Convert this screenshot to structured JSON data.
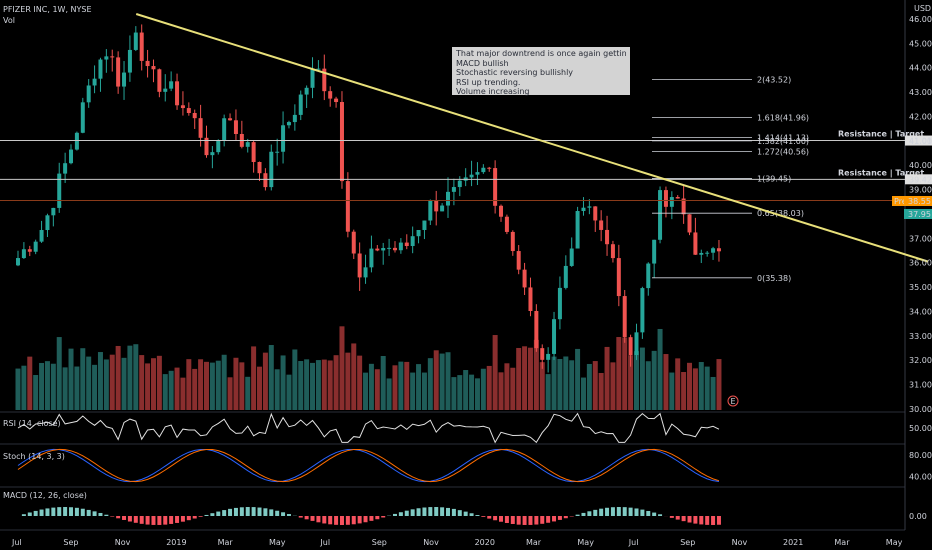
{
  "header": {
    "symbol_line": "PFIZER INC, 1W, NYSE",
    "vol_label": "Vol",
    "currency": "USD"
  },
  "note": {
    "lines": [
      "That major downtrend is once again getting hit today.",
      "MACD bullish",
      "Stochastic reversing bullishly",
      "RSI up trending.",
      "Volume increasing"
    ]
  },
  "indicators": {
    "rsi_label": "RSI (14, close)",
    "stoch_label": "Stoch (14, 3, 3)",
    "macd_label": "MACD (12, 26, close)"
  },
  "price_badges": {
    "pre_label": "Pre",
    "pre_value": "38.55",
    "last_value": "37.95"
  },
  "earnings_marker": "E",
  "chart_data": {
    "type": "candlestick",
    "price_axis": {
      "ylim": [
        30.0,
        46.2
      ],
      "ticks": [
        "46.00",
        "45.00",
        "44.00",
        "43.00",
        "42.00",
        "41.00",
        "40.00",
        "39.00",
        "38.00",
        "37.00",
        "36.00",
        "35.00",
        "34.00",
        "33.00",
        "32.00",
        "31.00",
        "30.00"
      ],
      "tick_values": [
        46,
        45,
        44,
        43,
        42,
        41,
        40,
        39,
        38,
        37,
        36,
        35,
        34,
        33,
        32,
        31,
        30
      ]
    },
    "time_axis": {
      "labels": [
        "Jul",
        "Sep",
        "Nov",
        "2019",
        "Mar",
        "May",
        "Jul",
        "Sep",
        "Nov",
        "2020",
        "Mar",
        "May",
        "Jul",
        "Sep",
        "Nov",
        "2021",
        "Mar",
        "May"
      ],
      "label_months": [
        0,
        2,
        4,
        6,
        8,
        10,
        12,
        14,
        16,
        18,
        20,
        22,
        24,
        26,
        28,
        30,
        32,
        34
      ]
    },
    "ohlc_keypoints": [
      {
        "month": 0.0,
        "price": 36.2
      },
      {
        "month": 1.0,
        "price": 37.5
      },
      {
        "month": 2.0,
        "price": 40.5
      },
      {
        "month": 3.0,
        "price": 44.0
      },
      {
        "month": 3.5,
        "price": 44.8
      },
      {
        "month": 4.0,
        "price": 43.2
      },
      {
        "month": 4.6,
        "price": 45.8
      },
      {
        "month": 5.0,
        "price": 43.7
      },
      {
        "month": 6.0,
        "price": 43.0
      },
      {
        "month": 7.0,
        "price": 41.6
      },
      {
        "month": 7.6,
        "price": 40.0
      },
      {
        "month": 8.0,
        "price": 42.2
      },
      {
        "month": 9.0,
        "price": 40.6
      },
      {
        "month": 9.6,
        "price": 39.4
      },
      {
        "month": 10.0,
        "price": 40.6
      },
      {
        "month": 11.0,
        "price": 42.8
      },
      {
        "month": 11.6,
        "price": 44.0
      },
      {
        "month": 12.0,
        "price": 43.2
      },
      {
        "month": 12.4,
        "price": 42.6
      },
      {
        "month": 12.7,
        "price": 38.4
      },
      {
        "month": 13.3,
        "price": 35.2
      },
      {
        "month": 14.0,
        "price": 36.7
      },
      {
        "month": 15.0,
        "price": 36.5
      },
      {
        "month": 16.0,
        "price": 38.3
      },
      {
        "month": 17.0,
        "price": 38.8
      },
      {
        "month": 17.8,
        "price": 39.4
      },
      {
        "month": 18.3,
        "price": 40.0
      },
      {
        "month": 18.6,
        "price": 38.6
      },
      {
        "month": 19.3,
        "price": 36.6
      },
      {
        "month": 19.9,
        "price": 34.0
      },
      {
        "month": 20.4,
        "price": 31.6
      },
      {
        "month": 21.0,
        "price": 34.5
      },
      {
        "month": 21.6,
        "price": 37.2
      },
      {
        "month": 22.0,
        "price": 38.3
      },
      {
        "month": 22.5,
        "price": 37.6
      },
      {
        "month": 23.0,
        "price": 37.0
      },
      {
        "month": 23.5,
        "price": 33.4
      },
      {
        "month": 23.9,
        "price": 32.5
      },
      {
        "month": 24.3,
        "price": 34.8
      },
      {
        "month": 24.8,
        "price": 37.0
      },
      {
        "month": 25.0,
        "price": 38.8
      },
      {
        "month": 25.4,
        "price": 38.3
      },
      {
        "month": 25.7,
        "price": 39.0
      },
      {
        "month": 26.0,
        "price": 38.1
      },
      {
        "month": 26.4,
        "price": 36.6
      },
      {
        "month": 26.8,
        "price": 36.1
      },
      {
        "month": 27.2,
        "price": 36.4
      },
      {
        "month": 27.5,
        "price": 37.95
      }
    ],
    "trendline": {
      "from": {
        "month": 4.6,
        "price": 46.2
      },
      "to": {
        "month": 35.4,
        "price": 36.05
      },
      "color": "#e8e07a"
    },
    "horizontal_lines": [
      {
        "price": 41.01,
        "label": "Resistance | Target",
        "axis_label": "41.01"
      },
      {
        "price": 39.42,
        "label": "Resistance | Target",
        "axis_label": "39.42"
      },
      {
        "price": 38.55,
        "axis_label": ""
      }
    ],
    "fibonacci": {
      "levels": [
        {
          "label": "2(43.52)",
          "price": 43.52
        },
        {
          "label": "1.618(41.96)",
          "price": 41.96
        },
        {
          "label": "1.414(41.13)",
          "price": 41.13
        },
        {
          "label": "1.382(41.00)",
          "price": 41.0
        },
        {
          "label": "1.272(40.56)",
          "price": 40.56
        },
        {
          "label": "1(39.45)",
          "price": 39.45
        },
        {
          "label": "0.65(38.03)",
          "price": 38.03
        },
        {
          "label": "0(35.38)",
          "price": 35.38
        }
      ]
    },
    "rsi": {
      "ylim": [
        30,
        70
      ],
      "ticks": [
        "50.00"
      ],
      "tick_values": [
        50
      ],
      "last": 52.0
    },
    "stoch": {
      "ylim": [
        20,
        100
      ],
      "ticks": [
        "80.00",
        "40.00"
      ],
      "tick_values": [
        80,
        40
      ]
    },
    "macd": {
      "ticks": [
        "0.00"
      ],
      "tick_values": [
        0
      ]
    },
    "colors": {
      "up": "#26a69a",
      "down": "#ef5350",
      "vol_up": "#1f5d59",
      "vol_down": "#8a2e2e",
      "pre": "#ff9800",
      "last": "#26a69a",
      "trend": "#e8e07a"
    }
  }
}
